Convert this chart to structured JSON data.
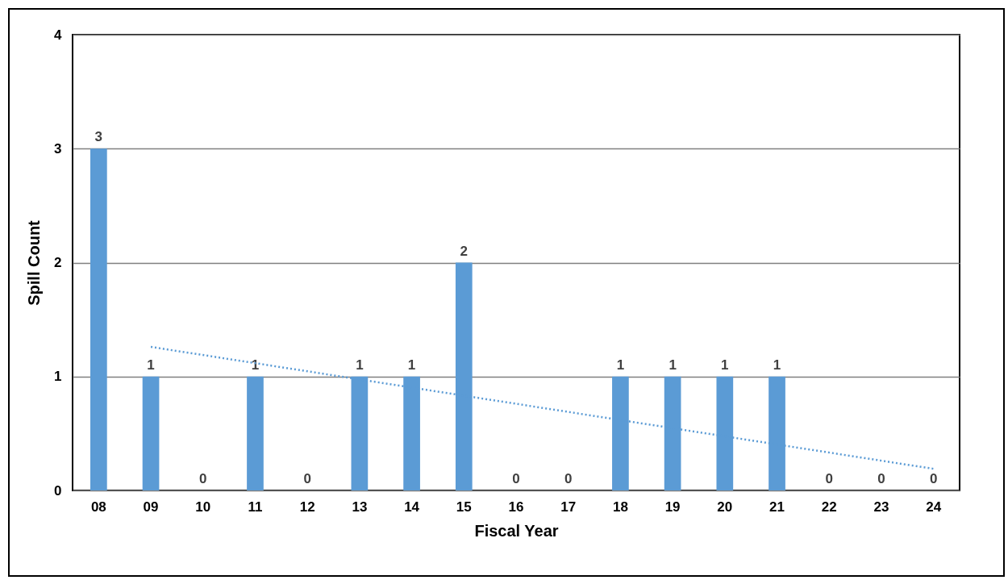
{
  "chart_data": {
    "type": "bar",
    "xlabel": "Fiscal Year",
    "ylabel": "Spill Count",
    "categories": [
      "08",
      "09",
      "10",
      "11",
      "12",
      "13",
      "14",
      "15",
      "16",
      "17",
      "18",
      "19",
      "20",
      "21",
      "22",
      "23",
      "24"
    ],
    "series": [
      {
        "color": "#5b9bd5",
        "values": [
          3,
          1,
          0,
          1,
          0,
          1,
          1,
          2,
          0,
          0,
          1,
          1,
          1,
          1,
          0,
          0,
          0
        ],
        "value_labels": [
          "3",
          "1",
          "0",
          "1",
          "0",
          "1",
          "1",
          "2",
          "0",
          "0",
          "1",
          "1",
          "1",
          "1",
          "0",
          "0",
          "0"
        ]
      },
      {
        "type": "line",
        "color": "#5b9bd5",
        "line_style": "dotted",
        "x": [
          "09",
          "24"
        ],
        "values": [
          1.26,
          0.19
        ]
      }
    ],
    "ylim": [
      0,
      4
    ],
    "yticks": [
      0,
      1,
      2,
      3,
      4
    ],
    "grid": "y"
  }
}
